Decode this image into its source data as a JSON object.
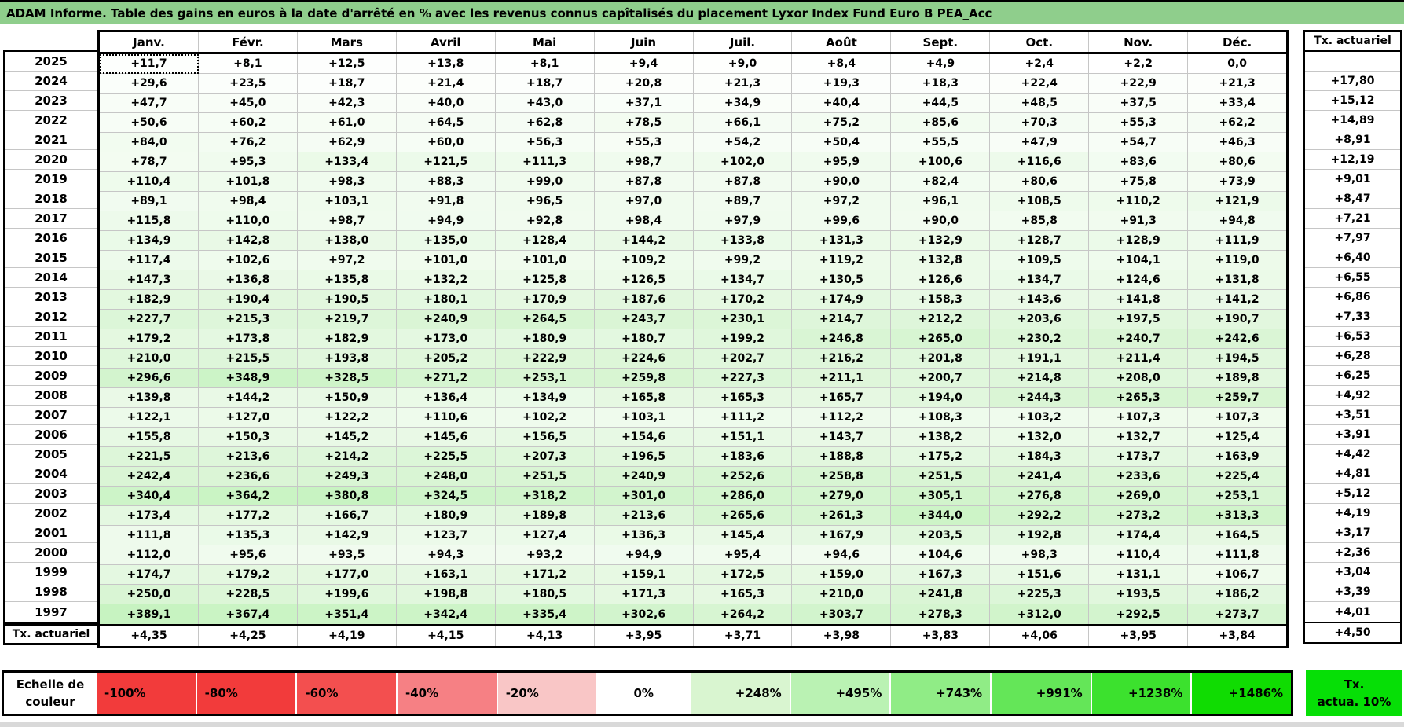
{
  "title": "ADAM Informe. Table des gains en euros à la date d'arrêté en % avec les revenus connus capîtalisés du placement Lyxor Index Fund Euro B PEA_Acc",
  "colors": {
    "title_bg": "#8FCE8C",
    "grid_line": "#C6C6C6",
    "border": "#000000",
    "legend_tx_green": "#06DF06"
  },
  "cell_gradient": [
    [
      0,
      "#FFFFFF"
    ],
    [
      248,
      "#D9F5D4"
    ],
    [
      495,
      "#BAF2B3"
    ],
    [
      743,
      "#90EC86"
    ],
    [
      991,
      "#64E658"
    ],
    [
      1238,
      "#3CE12E"
    ],
    [
      1486,
      "#10DC02"
    ]
  ],
  "table": {
    "months": [
      "Janv.",
      "Févr.",
      "Mars",
      "Avril",
      "Mai",
      "Juin",
      "Juil.",
      "Août",
      "Sept.",
      "Oct.",
      "Nov.",
      "Déc."
    ],
    "tx_header": "Tx. actuariel",
    "tx_row_label": "Tx. actuariel",
    "rows": [
      {
        "year": "2025",
        "values": [
          "+11,7",
          "+8,1",
          "+12,5",
          "+13,8",
          "+8,1",
          "+9,4",
          "+9,0",
          "+8,4",
          "+4,9",
          "+2,4",
          "+2,2",
          "0,0"
        ],
        "tx": ""
      },
      {
        "year": "2024",
        "values": [
          "+29,6",
          "+23,5",
          "+18,7",
          "+21,4",
          "+18,7",
          "+20,8",
          "+21,3",
          "+19,3",
          "+18,3",
          "+22,4",
          "+22,9",
          "+21,3"
        ],
        "tx": "+17,80"
      },
      {
        "year": "2023",
        "values": [
          "+47,7",
          "+45,0",
          "+42,3",
          "+40,0",
          "+43,0",
          "+37,1",
          "+34,9",
          "+40,4",
          "+44,5",
          "+48,5",
          "+37,5",
          "+33,4"
        ],
        "tx": "+15,12"
      },
      {
        "year": "2022",
        "values": [
          "+50,6",
          "+60,2",
          "+61,0",
          "+64,5",
          "+62,8",
          "+78,5",
          "+66,1",
          "+75,2",
          "+85,6",
          "+70,3",
          "+55,3",
          "+62,2"
        ],
        "tx": "+14,89"
      },
      {
        "year": "2021",
        "values": [
          "+84,0",
          "+76,2",
          "+62,9",
          "+60,0",
          "+56,3",
          "+55,3",
          "+54,2",
          "+50,4",
          "+55,5",
          "+47,9",
          "+54,7",
          "+46,3"
        ],
        "tx": "+8,91"
      },
      {
        "year": "2020",
        "values": [
          "+78,7",
          "+95,3",
          "+133,4",
          "+121,5",
          "+111,3",
          "+98,7",
          "+102,0",
          "+95,9",
          "+100,6",
          "+116,6",
          "+83,6",
          "+80,6"
        ],
        "tx": "+12,19"
      },
      {
        "year": "2019",
        "values": [
          "+110,4",
          "+101,8",
          "+98,3",
          "+88,3",
          "+99,0",
          "+87,8",
          "+87,8",
          "+90,0",
          "+82,4",
          "+80,6",
          "+75,8",
          "+73,9"
        ],
        "tx": "+9,01"
      },
      {
        "year": "2018",
        "values": [
          "+89,1",
          "+98,4",
          "+103,1",
          "+91,8",
          "+96,5",
          "+97,0",
          "+89,7",
          "+97,2",
          "+96,1",
          "+108,5",
          "+110,2",
          "+121,9"
        ],
        "tx": "+8,47"
      },
      {
        "year": "2017",
        "values": [
          "+115,8",
          "+110,0",
          "+98,7",
          "+94,9",
          "+92,8",
          "+98,4",
          "+97,9",
          "+99,6",
          "+90,0",
          "+85,8",
          "+91,3",
          "+94,8"
        ],
        "tx": "+7,21"
      },
      {
        "year": "2016",
        "values": [
          "+134,9",
          "+142,8",
          "+138,0",
          "+135,0",
          "+128,4",
          "+144,2",
          "+133,8",
          "+131,3",
          "+132,9",
          "+128,7",
          "+128,9",
          "+111,9"
        ],
        "tx": "+7,97"
      },
      {
        "year": "2015",
        "values": [
          "+117,4",
          "+102,6",
          "+97,2",
          "+101,0",
          "+101,0",
          "+109,2",
          "+99,2",
          "+119,2",
          "+132,8",
          "+109,5",
          "+104,1",
          "+119,0"
        ],
        "tx": "+6,40"
      },
      {
        "year": "2014",
        "values": [
          "+147,3",
          "+136,8",
          "+135,8",
          "+132,2",
          "+125,8",
          "+126,5",
          "+134,7",
          "+130,5",
          "+126,6",
          "+134,7",
          "+124,6",
          "+131,8"
        ],
        "tx": "+6,55"
      },
      {
        "year": "2013",
        "values": [
          "+182,9",
          "+190,4",
          "+190,5",
          "+180,1",
          "+170,9",
          "+187,6",
          "+170,2",
          "+174,9",
          "+158,3",
          "+143,6",
          "+141,8",
          "+141,2"
        ],
        "tx": "+6,86"
      },
      {
        "year": "2012",
        "values": [
          "+227,7",
          "+215,3",
          "+219,7",
          "+240,9",
          "+264,5",
          "+243,7",
          "+230,1",
          "+214,7",
          "+212,2",
          "+203,6",
          "+197,5",
          "+190,7"
        ],
        "tx": "+7,33"
      },
      {
        "year": "2011",
        "values": [
          "+179,2",
          "+173,8",
          "+182,9",
          "+173,0",
          "+180,9",
          "+180,7",
          "+199,2",
          "+246,8",
          "+265,0",
          "+230,2",
          "+240,7",
          "+242,6"
        ],
        "tx": "+6,53"
      },
      {
        "year": "2010",
        "values": [
          "+210,0",
          "+215,5",
          "+193,8",
          "+205,2",
          "+222,9",
          "+224,6",
          "+202,7",
          "+216,2",
          "+201,8",
          "+191,1",
          "+211,4",
          "+194,5"
        ],
        "tx": "+6,28"
      },
      {
        "year": "2009",
        "values": [
          "+296,6",
          "+348,9",
          "+328,5",
          "+271,2",
          "+253,1",
          "+259,8",
          "+227,3",
          "+211,1",
          "+200,7",
          "+214,8",
          "+208,0",
          "+189,8"
        ],
        "tx": "+6,25"
      },
      {
        "year": "2008",
        "values": [
          "+139,8",
          "+144,2",
          "+150,9",
          "+136,4",
          "+134,9",
          "+165,8",
          "+165,3",
          "+165,7",
          "+194,0",
          "+244,3",
          "+265,3",
          "+259,7"
        ],
        "tx": "+4,92"
      },
      {
        "year": "2007",
        "values": [
          "+122,1",
          "+127,0",
          "+122,2",
          "+110,6",
          "+102,2",
          "+103,1",
          "+111,2",
          "+112,2",
          "+108,3",
          "+103,2",
          "+107,3",
          "+107,3"
        ],
        "tx": "+3,51"
      },
      {
        "year": "2006",
        "values": [
          "+155,8",
          "+150,3",
          "+145,2",
          "+145,6",
          "+156,5",
          "+154,6",
          "+151,1",
          "+143,7",
          "+138,2",
          "+132,0",
          "+132,7",
          "+125,4"
        ],
        "tx": "+3,91"
      },
      {
        "year": "2005",
        "values": [
          "+221,5",
          "+213,6",
          "+214,2",
          "+225,5",
          "+207,3",
          "+196,5",
          "+183,6",
          "+188,8",
          "+175,2",
          "+184,3",
          "+173,7",
          "+163,9"
        ],
        "tx": "+4,42"
      },
      {
        "year": "2004",
        "values": [
          "+242,4",
          "+236,6",
          "+249,3",
          "+248,0",
          "+251,5",
          "+240,9",
          "+252,6",
          "+258,8",
          "+251,5",
          "+241,4",
          "+233,6",
          "+225,4"
        ],
        "tx": "+4,81"
      },
      {
        "year": "2003",
        "values": [
          "+340,4",
          "+364,2",
          "+380,8",
          "+324,5",
          "+318,2",
          "+301,0",
          "+286,0",
          "+279,0",
          "+305,1",
          "+276,8",
          "+269,0",
          "+253,1"
        ],
        "tx": "+5,12"
      },
      {
        "year": "2002",
        "values": [
          "+173,4",
          "+177,2",
          "+166,7",
          "+180,9",
          "+189,8",
          "+213,6",
          "+265,6",
          "+261,3",
          "+344,0",
          "+292,2",
          "+273,2",
          "+313,3"
        ],
        "tx": "+4,19"
      },
      {
        "year": "2001",
        "values": [
          "+111,8",
          "+135,3",
          "+142,9",
          "+123,7",
          "+127,4",
          "+136,3",
          "+145,4",
          "+167,9",
          "+203,5",
          "+192,8",
          "+174,4",
          "+164,5"
        ],
        "tx": "+3,17"
      },
      {
        "year": "2000",
        "values": [
          "+112,0",
          "+95,6",
          "+93,5",
          "+94,3",
          "+93,2",
          "+94,9",
          "+95,4",
          "+94,6",
          "+104,6",
          "+98,3",
          "+110,4",
          "+111,8"
        ],
        "tx": "+2,36"
      },
      {
        "year": "1999",
        "values": [
          "+174,7",
          "+179,2",
          "+177,0",
          "+163,1",
          "+171,2",
          "+159,1",
          "+172,5",
          "+159,0",
          "+167,3",
          "+151,6",
          "+131,1",
          "+106,7"
        ],
        "tx": "+3,04"
      },
      {
        "year": "1998",
        "values": [
          "+250,0",
          "+228,5",
          "+199,6",
          "+198,8",
          "+180,5",
          "+171,3",
          "+165,3",
          "+210,0",
          "+241,8",
          "+225,3",
          "+193,5",
          "+186,2"
        ],
        "tx": "+3,39"
      },
      {
        "year": "1997",
        "values": [
          "+389,1",
          "+367,4",
          "+351,4",
          "+342,4",
          "+335,4",
          "+302,6",
          "+264,2",
          "+303,7",
          "+278,3",
          "+312,0",
          "+292,5",
          "+273,7"
        ],
        "tx": "+4,01"
      }
    ],
    "tx_row": {
      "values": [
        "+4,35",
        "+4,25",
        "+4,19",
        "+4,15",
        "+4,13",
        "+3,95",
        "+3,71",
        "+3,98",
        "+3,83",
        "+4,06",
        "+3,95",
        "+3,84"
      ],
      "tx": "+4,50"
    }
  },
  "legend": {
    "label": "Echelle de couleur",
    "items": [
      {
        "label": "-100%",
        "color": "#F23B3B",
        "align": "left"
      },
      {
        "label": "-80%",
        "color": "#F23B3B",
        "align": "left"
      },
      {
        "label": "-60%",
        "color": "#F34F4F",
        "align": "left"
      },
      {
        "label": "-40%",
        "color": "#F68084",
        "align": "left"
      },
      {
        "label": "-20%",
        "color": "#F9C6C6",
        "align": "left"
      },
      {
        "label": "0%",
        "color": "#FFFFFF",
        "align": "center"
      },
      {
        "label": "+248%",
        "color": "#D9F5D0",
        "align": "right"
      },
      {
        "label": "+495%",
        "color": "#BAF2B3",
        "align": "right"
      },
      {
        "label": "+743%",
        "color": "#90EC86",
        "align": "right"
      },
      {
        "label": "+991%",
        "color": "#64E658",
        "align": "right"
      },
      {
        "label": "+1238%",
        "color": "#3CE12E",
        "align": "right"
      },
      {
        "label": "+1486%",
        "color": "#10DC02",
        "align": "right"
      }
    ],
    "tx_box": {
      "line1": "Tx.",
      "line2": "actua. 10%",
      "color": "#06DF06"
    }
  }
}
